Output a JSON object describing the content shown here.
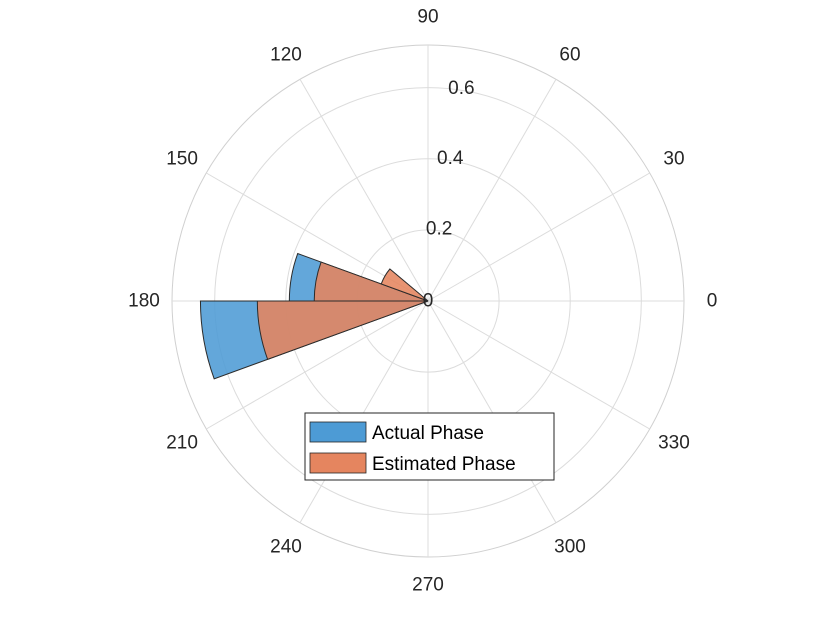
{
  "chart_data": {
    "type": "polar-histogram",
    "theta_unit": "degrees",
    "theta_tick_labels": [
      "0",
      "30",
      "60",
      "90",
      "120",
      "150",
      "180",
      "210",
      "240",
      "270",
      "300",
      "330"
    ],
    "r_tick_labels": [
      "0",
      "0.2",
      "0.4",
      "0.6"
    ],
    "r_ticks": [
      0,
      0.2,
      0.4,
      0.6
    ],
    "rlim": [
      0,
      0.72
    ],
    "grid": true,
    "legend_position": "bottom",
    "series": [
      {
        "name": "Actual Phase",
        "color": "#4d9bd5",
        "bins": [
          {
            "theta_start": 180,
            "theta_end": 200,
            "value": 0.64
          },
          {
            "theta_start": 160,
            "theta_end": 180,
            "value": 0.39
          }
        ]
      },
      {
        "name": "Estimated Phase",
        "color": "#e5855f",
        "bins": [
          {
            "theta_start": 180,
            "theta_end": 200,
            "value": 0.48
          },
          {
            "theta_start": 160,
            "theta_end": 180,
            "value": 0.32
          },
          {
            "theta_start": 140,
            "theta_end": 160,
            "value": 0.14
          }
        ]
      }
    ]
  }
}
